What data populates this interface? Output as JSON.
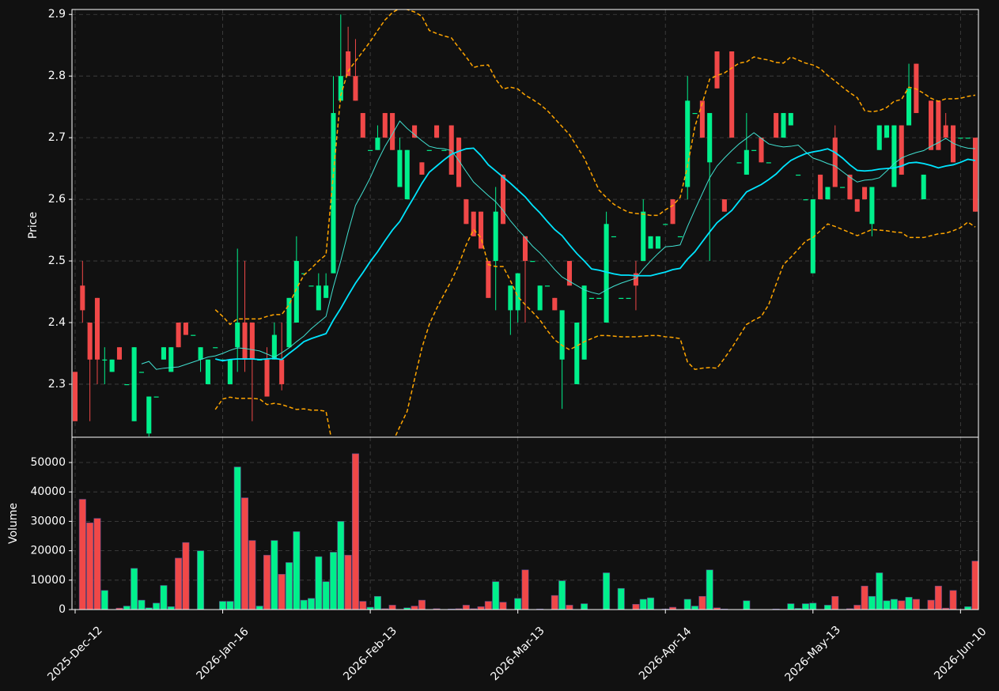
{
  "chart_data": {
    "type": "candlestick",
    "ylabel": "Price",
    "grid": true,
    "up_color": "#00f08c",
    "down_color": "#f04848",
    "ylim": [
      2.214,
      2.908
    ],
    "yticks": [
      2.3,
      2.4,
      2.5,
      2.6,
      2.7,
      2.8,
      2.9
    ],
    "categories": [
      "2025-Dec-12",
      null,
      null,
      null,
      null,
      null,
      null,
      null,
      null,
      null,
      null,
      null,
      null,
      null,
      null,
      null,
      null,
      null,
      null,
      null,
      "2026-Jan-16",
      null,
      null,
      null,
      null,
      null,
      null,
      null,
      null,
      null,
      null,
      null,
      null,
      null,
      null,
      null,
      null,
      null,
      null,
      null,
      "2026-Feb-13",
      null,
      null,
      null,
      null,
      null,
      null,
      null,
      null,
      null,
      null,
      null,
      null,
      null,
      null,
      null,
      null,
      null,
      null,
      null,
      "2026-Mar-13",
      null,
      null,
      null,
      null,
      null,
      null,
      null,
      null,
      null,
      null,
      null,
      null,
      null,
      null,
      null,
      null,
      null,
      null,
      null,
      "2026-Apr-14",
      null,
      null,
      null,
      null,
      null,
      null,
      null,
      null,
      null,
      null,
      null,
      null,
      null,
      null,
      null,
      null,
      null,
      null,
      null,
      "2026-May-13",
      null,
      null,
      null,
      null,
      null,
      null,
      null,
      null,
      null,
      null,
      null,
      null,
      null,
      null,
      null,
      null,
      null,
      null,
      null,
      "2026-Jun-10",
      null,
      null
    ],
    "open": [
      2.32,
      2.46,
      2.4,
      2.44,
      2.34,
      2.32,
      2.36,
      2.3,
      2.24,
      2.32,
      2.22,
      2.28,
      2.34,
      2.32,
      2.4,
      2.4,
      2.38,
      2.34,
      2.3,
      2.36,
      2.34,
      2.3,
      2.36,
      2.4,
      2.4,
      2.34,
      2.34,
      2.34,
      2.34,
      2.36,
      2.4,
      2.48,
      2.46,
      2.42,
      2.44,
      2.48,
      2.76,
      2.84,
      2.8,
      2.74,
      2.68,
      2.68,
      2.74,
      2.74,
      2.62,
      2.6,
      2.72,
      2.66,
      2.68,
      2.72,
      2.68,
      2.72,
      2.7,
      2.6,
      2.58,
      2.58,
      2.5,
      2.5,
      2.64,
      2.42,
      2.42,
      2.54,
      2.5,
      2.42,
      2.46,
      2.44,
      2.34,
      2.5,
      2.3,
      2.34,
      2.44,
      2.44,
      2.4,
      2.54,
      2.44,
      2.44,
      2.48,
      2.5,
      2.52,
      2.52,
      2.56,
      2.6,
      2.54,
      2.62,
      2.74,
      2.76,
      2.66,
      2.84,
      2.6,
      2.84,
      2.66,
      2.64,
      2.68,
      2.7,
      2.66,
      2.74,
      2.7,
      2.72,
      2.64,
      2.6,
      2.48,
      2.64,
      2.6,
      2.7,
      2.62,
      2.64,
      2.6,
      2.62,
      2.56,
      2.68,
      2.7,
      2.62,
      2.72,
      2.72,
      2.82,
      2.6,
      2.76,
      2.76,
      2.72,
      2.72,
      2.7,
      2.7,
      2.7
    ],
    "high": [
      2.32,
      2.5,
      2.4,
      2.44,
      2.36,
      2.34,
      2.36,
      2.3,
      2.36,
      2.32,
      2.28,
      2.28,
      2.36,
      2.36,
      2.4,
      2.4,
      2.38,
      2.36,
      2.34,
      2.36,
      2.34,
      2.34,
      2.52,
      2.5,
      2.4,
      2.34,
      2.36,
      2.4,
      2.4,
      2.44,
      2.54,
      2.48,
      2.46,
      2.48,
      2.48,
      2.8,
      2.9,
      2.88,
      2.86,
      2.74,
      2.68,
      2.72,
      2.74,
      2.74,
      2.7,
      2.68,
      2.72,
      2.66,
      2.68,
      2.72,
      2.68,
      2.72,
      2.7,
      2.6,
      2.58,
      2.58,
      2.5,
      2.62,
      2.64,
      2.46,
      2.48,
      2.54,
      2.5,
      2.46,
      2.46,
      2.44,
      2.42,
      2.5,
      2.4,
      2.46,
      2.44,
      2.44,
      2.58,
      2.54,
      2.44,
      2.44,
      2.5,
      2.6,
      2.54,
      2.54,
      2.56,
      2.6,
      2.54,
      2.8,
      2.74,
      2.76,
      2.74,
      2.84,
      2.6,
      2.84,
      2.66,
      2.74,
      2.68,
      2.7,
      2.66,
      2.74,
      2.74,
      2.74,
      2.64,
      2.6,
      2.6,
      2.64,
      2.62,
      2.72,
      2.62,
      2.64,
      2.6,
      2.62,
      2.62,
      2.72,
      2.72,
      2.72,
      2.72,
      2.82,
      2.82,
      2.64,
      2.76,
      2.76,
      2.74,
      2.72,
      2.7,
      2.7,
      2.7
    ],
    "low": [
      2.24,
      2.4,
      2.24,
      2.3,
      2.3,
      2.32,
      2.34,
      2.3,
      2.24,
      2.32,
      2.215,
      2.28,
      2.34,
      2.32,
      2.36,
      2.38,
      2.38,
      2.32,
      2.3,
      2.36,
      2.34,
      2.3,
      2.32,
      2.32,
      2.24,
      2.34,
      2.28,
      2.34,
      2.29,
      2.36,
      2.4,
      2.48,
      2.46,
      2.42,
      2.44,
      2.48,
      2.76,
      2.8,
      2.76,
      2.7,
      2.68,
      2.68,
      2.7,
      2.68,
      2.62,
      2.6,
      2.7,
      2.64,
      2.68,
      2.7,
      2.68,
      2.64,
      2.62,
      2.56,
      2.54,
      2.52,
      2.44,
      2.42,
      2.56,
      2.38,
      2.4,
      2.4,
      2.5,
      2.42,
      2.46,
      2.42,
      2.26,
      2.46,
      2.3,
      2.34,
      2.44,
      2.44,
      2.4,
      2.54,
      2.44,
      2.44,
      2.42,
      2.5,
      2.52,
      2.52,
      2.56,
      2.56,
      2.54,
      2.6,
      2.74,
      2.7,
      2.5,
      2.78,
      2.58,
      2.7,
      2.66,
      2.64,
      2.68,
      2.66,
      2.66,
      2.7,
      2.7,
      2.72,
      2.64,
      2.6,
      2.48,
      2.6,
      2.6,
      2.62,
      2.62,
      2.6,
      2.58,
      2.6,
      2.54,
      2.68,
      2.7,
      2.62,
      2.64,
      2.72,
      2.74,
      2.6,
      2.68,
      2.68,
      2.7,
      2.66,
      2.7,
      2.7,
      2.58
    ],
    "close": [
      2.24,
      2.42,
      2.34,
      2.34,
      2.34,
      2.34,
      2.34,
      2.3,
      2.36,
      2.32,
      2.28,
      2.28,
      2.36,
      2.36,
      2.36,
      2.38,
      2.38,
      2.36,
      2.34,
      2.36,
      2.34,
      2.34,
      2.4,
      2.34,
      2.34,
      2.34,
      2.28,
      2.38,
      2.3,
      2.44,
      2.5,
      2.48,
      2.46,
      2.46,
      2.46,
      2.74,
      2.8,
      2.8,
      2.76,
      2.7,
      2.68,
      2.7,
      2.7,
      2.68,
      2.68,
      2.68,
      2.7,
      2.64,
      2.68,
      2.7,
      2.68,
      2.64,
      2.62,
      2.56,
      2.54,
      2.52,
      2.44,
      2.58,
      2.56,
      2.46,
      2.48,
      2.5,
      2.5,
      2.46,
      2.46,
      2.42,
      2.42,
      2.46,
      2.4,
      2.46,
      2.44,
      2.44,
      2.56,
      2.54,
      2.44,
      2.44,
      2.46,
      2.58,
      2.54,
      2.54,
      2.56,
      2.56,
      2.54,
      2.76,
      2.74,
      2.7,
      2.74,
      2.78,
      2.58,
      2.7,
      2.66,
      2.68,
      2.68,
      2.66,
      2.66,
      2.7,
      2.74,
      2.74,
      2.64,
      2.6,
      2.6,
      2.6,
      2.62,
      2.62,
      2.62,
      2.6,
      2.58,
      2.6,
      2.62,
      2.72,
      2.72,
      2.72,
      2.64,
      2.78,
      2.74,
      2.64,
      2.68,
      2.68,
      2.7,
      2.66,
      2.7,
      2.7,
      2.58
    ],
    "overlays": [
      {
        "color": "#40e0d0",
        "dashed": false,
        "values": [
          null,
          null,
          null,
          null,
          null,
          null,
          null,
          null,
          null,
          2.333,
          2.337,
          2.324,
          2.326,
          2.327,
          2.328,
          2.332,
          2.336,
          2.34,
          2.344,
          2.346,
          2.35,
          2.355,
          2.359,
          2.358,
          2.356,
          2.354,
          2.349,
          2.344,
          2.351,
          2.359,
          2.369,
          2.378,
          2.39,
          2.4,
          2.41,
          2.458,
          2.5,
          2.547,
          2.59,
          2.612,
          2.635,
          2.662,
          2.686,
          2.706,
          2.727,
          2.715,
          2.705,
          2.695,
          2.686,
          2.683,
          2.682,
          2.679,
          2.663,
          2.645,
          2.628,
          2.617,
          2.606,
          2.596,
          2.582,
          2.565,
          2.551,
          2.538,
          2.524,
          2.513,
          2.5,
          2.486,
          2.474,
          2.467,
          2.46,
          2.453,
          2.449,
          2.446,
          2.453,
          2.459,
          2.464,
          2.468,
          2.472,
          2.487,
          2.5,
          2.512,
          2.523,
          2.524,
          2.526,
          2.556,
          2.583,
          2.609,
          2.635,
          2.654,
          2.667,
          2.679,
          2.69,
          2.699,
          2.708,
          2.699,
          2.69,
          2.687,
          2.685,
          2.686,
          2.688,
          2.677,
          2.667,
          2.663,
          2.658,
          2.654,
          2.645,
          2.636,
          2.628,
          2.631,
          2.632,
          2.635,
          2.646,
          2.658,
          2.667,
          2.672,
          2.676,
          2.679,
          2.686,
          2.692,
          2.699,
          2.691,
          2.686,
          2.683,
          2.682
        ]
      },
      {
        "color": "#00e5ff",
        "dashed": false,
        "values": [
          null,
          null,
          null,
          null,
          null,
          null,
          null,
          null,
          null,
          null,
          null,
          null,
          null,
          null,
          null,
          null,
          null,
          null,
          null,
          2.341,
          2.338,
          2.34,
          2.341,
          2.341,
          2.341,
          2.34,
          2.341,
          2.342,
          2.34,
          2.35,
          2.359,
          2.369,
          2.374,
          2.378,
          2.382,
          2.404,
          2.423,
          2.444,
          2.464,
          2.481,
          2.499,
          2.515,
          2.533,
          2.55,
          2.564,
          2.585,
          2.605,
          2.626,
          2.644,
          2.654,
          2.664,
          2.673,
          2.678,
          2.682,
          2.683,
          2.671,
          2.656,
          2.646,
          2.636,
          2.626,
          2.615,
          2.604,
          2.59,
          2.578,
          2.564,
          2.551,
          2.541,
          2.526,
          2.512,
          2.5,
          2.487,
          2.485,
          2.482,
          2.479,
          2.477,
          2.477,
          2.476,
          2.476,
          2.476,
          2.479,
          2.482,
          2.486,
          2.488,
          2.503,
          2.515,
          2.531,
          2.547,
          2.562,
          2.572,
          2.582,
          2.597,
          2.612,
          2.618,
          2.624,
          2.632,
          2.641,
          2.653,
          2.663,
          2.669,
          2.674,
          2.677,
          2.679,
          2.682,
          2.676,
          2.667,
          2.656,
          2.647,
          2.646,
          2.647,
          2.649,
          2.65,
          2.651,
          2.654,
          2.659,
          2.66,
          2.658,
          2.655,
          2.651,
          2.654,
          2.656,
          2.66,
          2.665,
          2.663
        ]
      },
      {
        "color": "#ffa500",
        "dashed": true,
        "values": [
          null,
          null,
          null,
          null,
          null,
          null,
          null,
          null,
          null,
          null,
          null,
          null,
          null,
          null,
          null,
          null,
          null,
          null,
          null,
          2.421,
          2.41,
          2.397,
          2.406,
          2.406,
          2.406,
          2.406,
          2.41,
          2.413,
          2.413,
          2.429,
          2.455,
          2.477,
          2.488,
          2.5,
          2.51,
          2.641,
          2.769,
          2.808,
          2.824,
          2.84,
          2.856,
          2.874,
          2.891,
          2.903,
          2.91,
          2.908,
          2.904,
          2.897,
          2.874,
          2.869,
          2.865,
          2.862,
          2.846,
          2.831,
          2.814,
          2.817,
          2.818,
          2.795,
          2.779,
          2.782,
          2.779,
          2.769,
          2.762,
          2.754,
          2.744,
          2.731,
          2.718,
          2.705,
          2.686,
          2.667,
          2.641,
          2.615,
          2.603,
          2.592,
          2.585,
          2.579,
          2.577,
          2.576,
          2.574,
          2.574,
          2.583,
          2.59,
          2.603,
          2.654,
          2.718,
          2.756,
          2.795,
          2.801,
          2.805,
          2.813,
          2.821,
          2.823,
          2.831,
          2.828,
          2.826,
          2.822,
          2.821,
          2.831,
          2.826,
          2.821,
          2.818,
          2.812,
          2.801,
          2.792,
          2.782,
          2.773,
          2.765,
          2.744,
          2.742,
          2.744,
          2.749,
          2.759,
          2.762,
          2.782,
          2.779,
          2.772,
          2.764,
          2.759,
          2.763,
          2.763,
          2.764,
          2.767,
          2.769
        ]
      },
      {
        "color": "#ffa500",
        "dashed": true,
        "values": [
          null,
          null,
          null,
          null,
          null,
          null,
          null,
          null,
          null,
          null,
          null,
          null,
          null,
          null,
          null,
          null,
          null,
          null,
          null,
          2.259,
          2.276,
          2.279,
          2.277,
          2.277,
          2.277,
          2.276,
          2.267,
          2.269,
          2.267,
          2.263,
          2.259,
          2.26,
          2.258,
          2.258,
          2.256,
          2.195,
          2.128,
          2.09,
          2.051,
          2.036,
          2.026,
          2.051,
          2.103,
          2.205,
          2.231,
          2.256,
          2.308,
          2.359,
          2.397,
          2.423,
          2.446,
          2.468,
          2.494,
          2.526,
          2.551,
          2.538,
          2.494,
          2.491,
          2.491,
          2.468,
          2.442,
          2.429,
          2.417,
          2.404,
          2.387,
          2.372,
          2.363,
          2.356,
          2.362,
          2.369,
          2.374,
          2.379,
          2.379,
          2.378,
          2.377,
          2.377,
          2.377,
          2.378,
          2.379,
          2.379,
          2.377,
          2.376,
          2.374,
          2.336,
          2.324,
          2.326,
          2.327,
          2.326,
          2.342,
          2.359,
          2.378,
          2.397,
          2.404,
          2.41,
          2.429,
          2.462,
          2.494,
          2.506,
          2.519,
          2.532,
          2.538,
          2.549,
          2.56,
          2.556,
          2.551,
          2.546,
          2.541,
          2.546,
          2.551,
          2.55,
          2.549,
          2.547,
          2.546,
          2.538,
          2.538,
          2.538,
          2.541,
          2.544,
          2.545,
          2.549,
          2.554,
          2.563,
          2.555
        ]
      }
    ],
    "volume": {
      "ylabel": "Volume",
      "ylim": [
        0,
        58600
      ],
      "yticks": [
        0,
        10000,
        20000,
        30000,
        40000,
        50000
      ],
      "values": [
        0,
        37500,
        29500,
        31000,
        6500,
        0,
        500,
        1200,
        14000,
        3200,
        600,
        2200,
        8200,
        1000,
        17500,
        22800,
        0,
        20000,
        0,
        0,
        2800,
        2800,
        48500,
        38000,
        23500,
        1200,
        18500,
        23500,
        12000,
        16000,
        26500,
        3200,
        3800,
        18000,
        9500,
        19500,
        30000,
        18500,
        53000,
        2800,
        800,
        4500,
        300,
        1500,
        0,
        600,
        1200,
        3200,
        0,
        300,
        0,
        200,
        300,
        1500,
        300,
        1000,
        2800,
        9500,
        2500,
        0,
        3800,
        13500,
        0,
        200,
        0,
        4800,
        9800,
        1500,
        0,
        2000,
        0,
        0,
        12500,
        0,
        7200,
        0,
        1800,
        3500,
        4000,
        0,
        200,
        800,
        0,
        3500,
        1200,
        4500,
        13500,
        600,
        200,
        0,
        0,
        3000,
        0,
        0,
        0,
        200,
        0,
        2000,
        400,
        2000,
        2200,
        0,
        1500,
        4500,
        0,
        300,
        1500,
        8000,
        4500,
        12500,
        3000,
        3500,
        3000,
        4200,
        3500,
        0,
        3200,
        8000,
        500,
        6500,
        0,
        1000,
        16500
      ]
    }
  }
}
